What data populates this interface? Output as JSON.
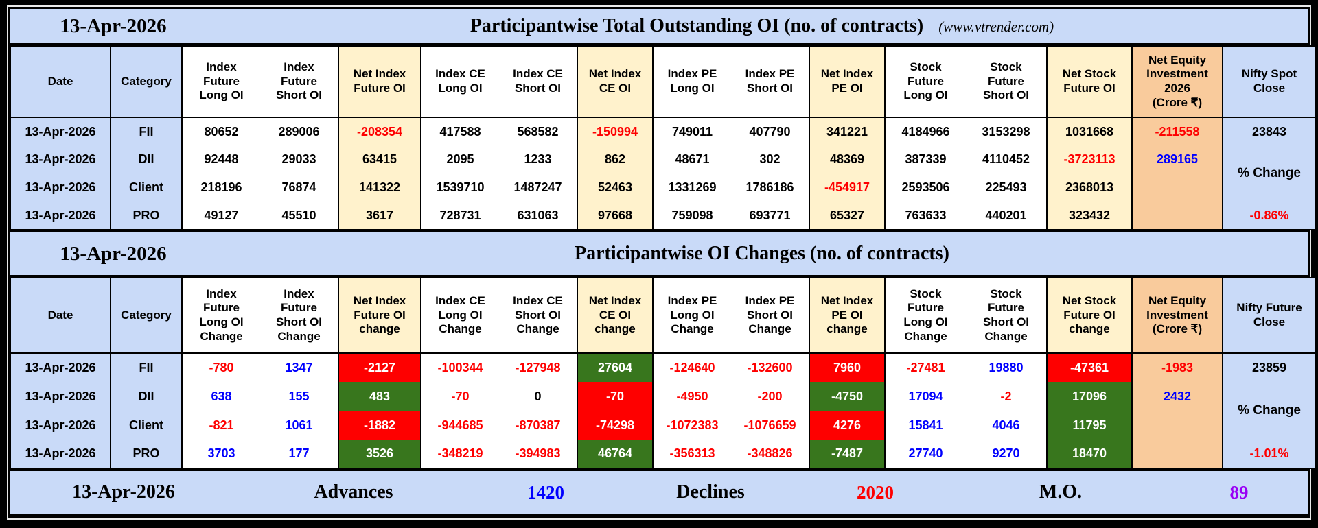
{
  "band1": {
    "date": "13-Apr-2026",
    "title": "Participantwise Total Outstanding OI (no. of contracts)",
    "site": "(www.vtrender.com)"
  },
  "band2": {
    "date": "13-Apr-2026",
    "title": "Participantwise OI Changes (no. of contracts)"
  },
  "footer": {
    "date": "13-Apr-2026",
    "advances_label": "Advances",
    "advances_value": "1420",
    "declines_label": "Declines",
    "declines_value": "2020",
    "mo_label": "M.O.",
    "mo_value": "89"
  },
  "colors": {
    "band_bg": "#c9daf8",
    "net_col_bg": "#fff2cc",
    "equity_col_bg": "#f9cb9c",
    "positive_bg": "#38761d",
    "negative_bg": "#fe0000",
    "negative_text": "#fe0000",
    "positive_text": "#0000fe",
    "mo_text": "#9900f5"
  },
  "table1": {
    "cols": [
      {
        "bg": "blue"
      },
      {
        "bg": "blue"
      },
      {
        "bg": "white",
        "pair": "l"
      },
      {
        "bg": "white",
        "pair": "r"
      },
      {
        "bg": "cream"
      },
      {
        "bg": "white",
        "pair": "l"
      },
      {
        "bg": "white",
        "pair": "r"
      },
      {
        "bg": "cream"
      },
      {
        "bg": "white",
        "pair": "l"
      },
      {
        "bg": "white",
        "pair": "r"
      },
      {
        "bg": "cream"
      },
      {
        "bg": "white",
        "pair": "l"
      },
      {
        "bg": "white",
        "pair": "r"
      },
      {
        "bg": "cream"
      },
      {
        "bg": "tan"
      },
      {
        "bg": "blue"
      }
    ],
    "headers": [
      "Date",
      "Category",
      "Index\nFuture\nLong OI",
      "Index\nFuture\nShort OI",
      "Net Index\nFuture OI",
      "Index CE\nLong OI",
      "Index CE\nShort OI",
      "Net Index\nCE OI",
      "Index PE\nLong OI",
      "Index PE\nShort OI",
      "Net Index\nPE OI",
      "Stock\nFuture\nLong OI",
      "Stock\nFuture\nShort OI",
      "Net Stock\nFuture OI",
      "Net Equity\nInvestment\n2026\n(Crore ₹)",
      "Nifty Spot\nClose"
    ],
    "rows": [
      {
        "cells": [
          {
            "v": "13-Apr-2026",
            "c": "k"
          },
          {
            "v": "FII",
            "c": "k"
          },
          {
            "v": "80652",
            "c": "k"
          },
          {
            "v": "289006",
            "c": "k"
          },
          {
            "v": "-208354",
            "c": "r"
          },
          {
            "v": "417588",
            "c": "k"
          },
          {
            "v": "568582",
            "c": "k"
          },
          {
            "v": "-150994",
            "c": "r"
          },
          {
            "v": "749011",
            "c": "k"
          },
          {
            "v": "407790",
            "c": "k"
          },
          {
            "v": "341221",
            "c": "k"
          },
          {
            "v": "4184966",
            "c": "k"
          },
          {
            "v": "3153298",
            "c": "k"
          },
          {
            "v": "1031668",
            "c": "k"
          },
          {
            "v": "-211558",
            "c": "r"
          },
          {
            "v": "23843",
            "c": "k"
          }
        ]
      },
      {
        "cells": [
          {
            "v": "13-Apr-2026",
            "c": "k"
          },
          {
            "v": "DII",
            "c": "k"
          },
          {
            "v": "92448",
            "c": "k"
          },
          {
            "v": "29033",
            "c": "k"
          },
          {
            "v": "63415",
            "c": "k"
          },
          {
            "v": "2095",
            "c": "k"
          },
          {
            "v": "1233",
            "c": "k"
          },
          {
            "v": "862",
            "c": "k"
          },
          {
            "v": "48671",
            "c": "k"
          },
          {
            "v": "302",
            "c": "k"
          },
          {
            "v": "48369",
            "c": "k"
          },
          {
            "v": "387339",
            "c": "k"
          },
          {
            "v": "4110452",
            "c": "k"
          },
          {
            "v": "-3723113",
            "c": "r"
          },
          {
            "v": "289165",
            "c": "b"
          },
          {
            "v": "% Change",
            "c": "pct",
            "rowspan": 2
          }
        ]
      },
      {
        "cells": [
          {
            "v": "13-Apr-2026",
            "c": "k"
          },
          {
            "v": "Client",
            "c": "k"
          },
          {
            "v": "218196",
            "c": "k"
          },
          {
            "v": "76874",
            "c": "k"
          },
          {
            "v": "141322",
            "c": "k"
          },
          {
            "v": "1539710",
            "c": "k"
          },
          {
            "v": "1487247",
            "c": "k"
          },
          {
            "v": "52463",
            "c": "k"
          },
          {
            "v": "1331269",
            "c": "k"
          },
          {
            "v": "1786186",
            "c": "k"
          },
          {
            "v": "-454917",
            "c": "r"
          },
          {
            "v": "2593506",
            "c": "k"
          },
          {
            "v": "225493",
            "c": "k"
          },
          {
            "v": "2368013",
            "c": "k"
          },
          {
            "v": "",
            "c": "k"
          },
          {
            "skip": true
          }
        ]
      },
      {
        "cells": [
          {
            "v": "13-Apr-2026",
            "c": "k"
          },
          {
            "v": "PRO",
            "c": "k"
          },
          {
            "v": "49127",
            "c": "k"
          },
          {
            "v": "45510",
            "c": "k"
          },
          {
            "v": "3617",
            "c": "k"
          },
          {
            "v": "728731",
            "c": "k"
          },
          {
            "v": "631063",
            "c": "k"
          },
          {
            "v": "97668",
            "c": "k"
          },
          {
            "v": "759098",
            "c": "k"
          },
          {
            "v": "693771",
            "c": "k"
          },
          {
            "v": "65327",
            "c": "k"
          },
          {
            "v": "763633",
            "c": "k"
          },
          {
            "v": "440201",
            "c": "k"
          },
          {
            "v": "323432",
            "c": "k"
          },
          {
            "v": "",
            "c": "k"
          },
          {
            "v": "-0.86%",
            "c": "pr"
          }
        ]
      }
    ]
  },
  "table2": {
    "cols": [
      {
        "bg": "blue"
      },
      {
        "bg": "blue"
      },
      {
        "bg": "white",
        "pair": "l"
      },
      {
        "bg": "white",
        "pair": "r"
      },
      {
        "bg": "cream"
      },
      {
        "bg": "white",
        "pair": "l"
      },
      {
        "bg": "white",
        "pair": "r"
      },
      {
        "bg": "cream"
      },
      {
        "bg": "white",
        "pair": "l"
      },
      {
        "bg": "white",
        "pair": "r"
      },
      {
        "bg": "cream"
      },
      {
        "bg": "white",
        "pair": "l"
      },
      {
        "bg": "white",
        "pair": "r"
      },
      {
        "bg": "cream"
      },
      {
        "bg": "tan"
      },
      {
        "bg": "blue"
      }
    ],
    "headers": [
      "Date",
      "Category",
      "Index\nFuture\nLong OI\nChange",
      "Index\nFuture\nShort OI\nChange",
      "Net Index\nFuture OI\nchange",
      "Index CE\nLong OI\nChange",
      "Index CE\nShort OI\nChange",
      "Net Index\nCE OI\nchange",
      "Index PE\nLong OI\nChange",
      "Index PE\nShort OI\nChange",
      "Net Index\nPE OI\nchange",
      "Stock\nFuture\nLong OI\nChange",
      "Stock\nFuture\nShort OI\nChange",
      "Net Stock\nFuture OI\nchange",
      "Net Equity\nInvestment\n(Crore ₹)",
      "Nifty Future\nClose"
    ],
    "rows": [
      {
        "cells": [
          {
            "v": "13-Apr-2026",
            "c": "k"
          },
          {
            "v": "FII",
            "c": "k"
          },
          {
            "v": "-780",
            "c": "r"
          },
          {
            "v": "1347",
            "c": "b"
          },
          {
            "v": "-2127",
            "c": "rb"
          },
          {
            "v": "-100344",
            "c": "r"
          },
          {
            "v": "-127948",
            "c": "r"
          },
          {
            "v": "27604",
            "c": "gb"
          },
          {
            "v": "-124640",
            "c": "r"
          },
          {
            "v": "-132600",
            "c": "r"
          },
          {
            "v": "7960",
            "c": "rb"
          },
          {
            "v": "-27481",
            "c": "r"
          },
          {
            "v": "19880",
            "c": "b"
          },
          {
            "v": "-47361",
            "c": "rb"
          },
          {
            "v": "-1983",
            "c": "r"
          },
          {
            "v": "23859",
            "c": "k"
          }
        ]
      },
      {
        "cells": [
          {
            "v": "13-Apr-2026",
            "c": "k"
          },
          {
            "v": "DII",
            "c": "k"
          },
          {
            "v": "638",
            "c": "b"
          },
          {
            "v": "155",
            "c": "b"
          },
          {
            "v": "483",
            "c": "gb"
          },
          {
            "v": "-70",
            "c": "r"
          },
          {
            "v": "0",
            "c": "k"
          },
          {
            "v": "-70",
            "c": "rb"
          },
          {
            "v": "-4950",
            "c": "r"
          },
          {
            "v": "-200",
            "c": "r"
          },
          {
            "v": "-4750",
            "c": "gb"
          },
          {
            "v": "17094",
            "c": "b"
          },
          {
            "v": "-2",
            "c": "r"
          },
          {
            "v": "17096",
            "c": "gb"
          },
          {
            "v": "2432",
            "c": "b"
          },
          {
            "v": "% Change",
            "c": "pct",
            "rowspan": 2
          }
        ]
      },
      {
        "cells": [
          {
            "v": "13-Apr-2026",
            "c": "k"
          },
          {
            "v": "Client",
            "c": "k"
          },
          {
            "v": "-821",
            "c": "r"
          },
          {
            "v": "1061",
            "c": "b"
          },
          {
            "v": "-1882",
            "c": "rb"
          },
          {
            "v": "-944685",
            "c": "r"
          },
          {
            "v": "-870387",
            "c": "r"
          },
          {
            "v": "-74298",
            "c": "rb"
          },
          {
            "v": "-1072383",
            "c": "r"
          },
          {
            "v": "-1076659",
            "c": "r"
          },
          {
            "v": "4276",
            "c": "rb"
          },
          {
            "v": "15841",
            "c": "b"
          },
          {
            "v": "4046",
            "c": "b"
          },
          {
            "v": "11795",
            "c": "gb"
          },
          {
            "v": "",
            "c": "k"
          },
          {
            "skip": true
          }
        ]
      },
      {
        "cells": [
          {
            "v": "13-Apr-2026",
            "c": "k"
          },
          {
            "v": "PRO",
            "c": "k"
          },
          {
            "v": "3703",
            "c": "b"
          },
          {
            "v": "177",
            "c": "b"
          },
          {
            "v": "3526",
            "c": "gb"
          },
          {
            "v": "-348219",
            "c": "r"
          },
          {
            "v": "-394983",
            "c": "r"
          },
          {
            "v": "46764",
            "c": "gb"
          },
          {
            "v": "-356313",
            "c": "r"
          },
          {
            "v": "-348826",
            "c": "r"
          },
          {
            "v": "-7487",
            "c": "gb"
          },
          {
            "v": "27740",
            "c": "b"
          },
          {
            "v": "9270",
            "c": "b"
          },
          {
            "v": "18470",
            "c": "gb"
          },
          {
            "v": "",
            "c": "k"
          },
          {
            "v": "-1.01%",
            "c": "pr"
          }
        ]
      }
    ]
  }
}
